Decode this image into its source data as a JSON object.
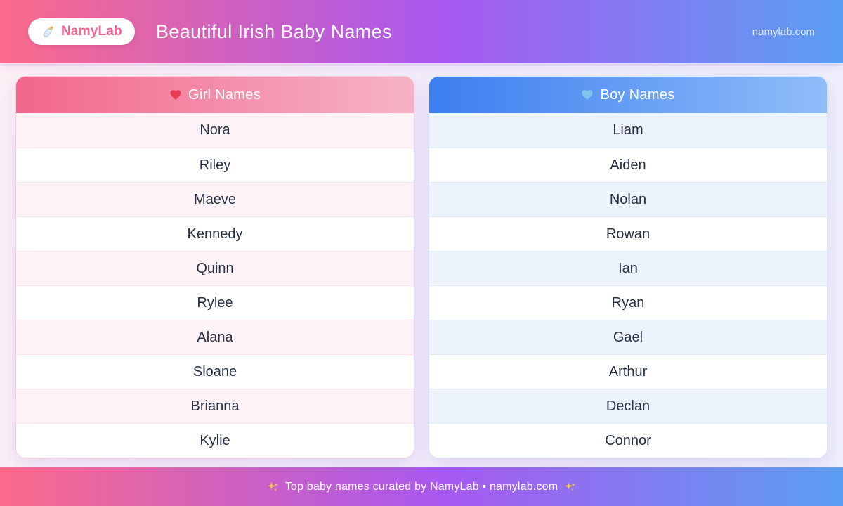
{
  "header": {
    "logo_icon": "baby-bottle-icon",
    "logo_text": "NamyLab",
    "title": "Beautiful Irish Baby Names",
    "site": "namylab.com"
  },
  "cards": [
    {
      "title": "Girl Names",
      "icon": "red-heart-icon",
      "names": [
        "Nora",
        "Riley",
        "Maeve",
        "Kennedy",
        "Quinn",
        "Rylee",
        "Alana",
        "Sloane",
        "Brianna",
        "Kylie"
      ]
    },
    {
      "title": "Boy Names",
      "icon": "blue-heart-icon",
      "names": [
        "Liam",
        "Aiden",
        "Nolan",
        "Rowan",
        "Ian",
        "Ryan",
        "Gael",
        "Arthur",
        "Declan",
        "Connor"
      ]
    }
  ],
  "footer": {
    "icon_left": "sparkles-icon",
    "text": "Top baby names curated by NamyLab • namylab.com",
    "icon_right": "sparkles-icon"
  },
  "colors": {
    "banner_gradient": [
      "#fb6b8a",
      "#a958ef",
      "#5b9ff3"
    ],
    "girl_header_gradient": [
      "#f2668c",
      "#f6b3c6"
    ],
    "boy_header_gradient": [
      "#3c7ef0",
      "#90bdf8"
    ],
    "girl_row_tint": "#fdf2f5",
    "boy_row_tint": "#edf3fc",
    "name_text_color": "#273245",
    "logo_text_color": "#f4618c",
    "red_heart": "#e63a55",
    "blue_heart": "#7fc4ec",
    "sparkle": "#f7c843"
  }
}
